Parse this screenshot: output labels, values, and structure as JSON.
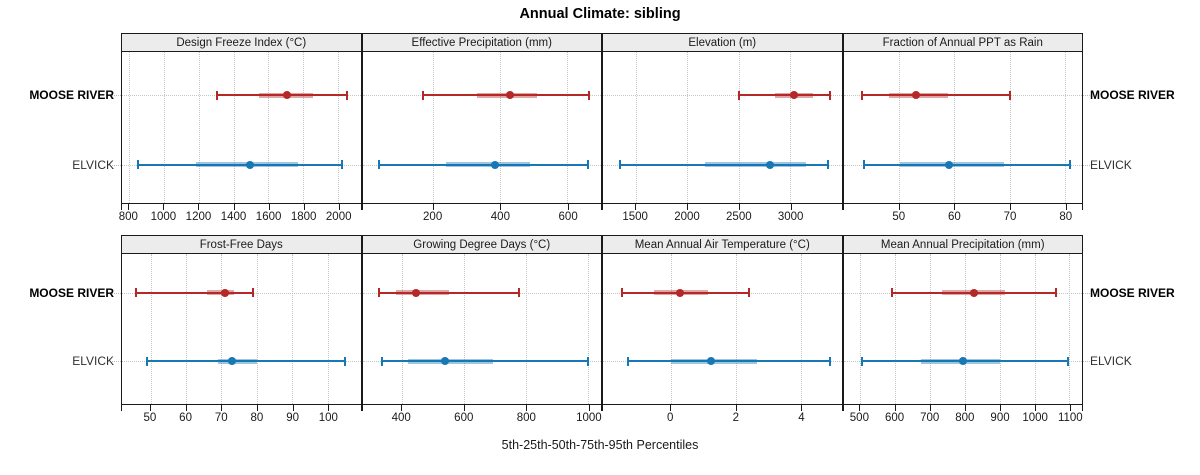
{
  "title": "Annual Climate: sibling",
  "xlabel": "5th-25th-50th-75th-95th Percentiles",
  "colors": {
    "moose_river": "#b42828",
    "elvick": "#1778b5",
    "grid": "#c6c6c6",
    "strip_bg": "#ececec",
    "panel_border": "#1a1a1a"
  },
  "chart_data": {
    "type": "interval-dotplot",
    "title": "Annual Climate: sibling",
    "xlabel": "5th-25th-50th-75th-95th Percentiles",
    "groups": [
      "MOOSE RIVER",
      "ELVICK"
    ],
    "percentile_levels": [
      5,
      25,
      50,
      75,
      95
    ],
    "legend_position": "none",
    "grid": "dotted",
    "layout": "2 rows x 4 columns, group labels on left and right of each row",
    "panels": [
      {
        "title": "Design Freeze Index (°C)",
        "row": 0,
        "xlim": [
          758,
          2130
        ],
        "ticks": [
          800,
          1000,
          1200,
          1400,
          1600,
          1800,
          2000
        ],
        "series": [
          {
            "name": "MOOSE RIVER",
            "percentiles": [
              1305,
              1545,
              1705,
              1855,
              2050
            ]
          },
          {
            "name": "ELVICK",
            "percentiles": [
              850,
              1185,
              1495,
              1770,
              2025
            ]
          }
        ]
      },
      {
        "title": "Effective Precipitation (mm)",
        "row": 0,
        "xlim": [
          -10,
          700
        ],
        "ticks": [
          200,
          400,
          600
        ],
        "series": [
          {
            "name": "MOOSE RIVER",
            "percentiles": [
              170,
              330,
              430,
              510,
              665
            ]
          },
          {
            "name": "ELVICK",
            "percentiles": [
              40,
              240,
              385,
              490,
              660
            ]
          }
        ]
      },
      {
        "title": "Elevation (m)",
        "row": 0,
        "xlim": [
          1180,
          3500
        ],
        "ticks": [
          1500,
          2000,
          2500,
          3000
        ],
        "series": [
          {
            "name": "MOOSE RIVER",
            "percentiles": [
              2500,
              2855,
              3040,
              3225,
              3390
            ]
          },
          {
            "name": "ELVICK",
            "percentiles": [
              1350,
              2170,
              2800,
              3150,
              3365
            ]
          }
        ]
      },
      {
        "title": "Fraction of Annual PPT as Rain",
        "row": 0,
        "xlim": [
          39.9,
          83.1
        ],
        "ticks": [
          50,
          60,
          70,
          80
        ],
        "series": [
          {
            "name": "MOOSE RIVER",
            "percentiles": [
              43.2,
              48.1,
              53.1,
              58.8,
              70.1
            ]
          },
          {
            "name": "ELVICK",
            "percentiles": [
              43.6,
              50.1,
              59,
              69,
              81
            ]
          }
        ]
      },
      {
        "title": "Frost-Free Days",
        "row": 1,
        "xlim": [
          41.9,
          109.3
        ],
        "ticks": [
          50,
          60,
          70,
          80,
          90,
          100
        ],
        "series": [
          {
            "name": "MOOSE RIVER",
            "percentiles": [
              45.8,
              66,
              71,
              73.5,
              79
            ]
          },
          {
            "name": "ELVICK",
            "percentiles": [
              49,
              69,
              73,
              80,
              105
            ]
          }
        ]
      },
      {
        "title": "Growing Degree Days (°C)",
        "row": 1,
        "xlim": [
          273,
          1042
        ],
        "ticks": [
          400,
          600,
          800,
          1000
        ],
        "series": [
          {
            "name": "MOOSE RIVER",
            "percentiles": [
              325,
              382,
              446,
              552,
              776
            ]
          },
          {
            "name": "ELVICK",
            "percentiles": [
              337,
              419,
              540,
              693,
              1000
            ]
          }
        ]
      },
      {
        "title": "Mean Annual Air Temperature (°C)",
        "row": 1,
        "xlim": [
          -2.08,
          5.25
        ],
        "ticks": [
          0,
          2,
          4
        ],
        "series": [
          {
            "name": "MOOSE RIVER",
            "percentiles": [
              -1.5,
              -0.5,
              0.3,
              1.15,
              2.4
            ]
          },
          {
            "name": "ELVICK",
            "percentiles": [
              -1.3,
              0,
              1.25,
              2.65,
              4.9
            ]
          }
        ]
      },
      {
        "title": "Mean Annual Precipitation (mm)",
        "row": 1,
        "xlim": [
          452,
          1136
        ],
        "ticks": [
          500,
          600,
          700,
          800,
          900,
          1000,
          1100
        ],
        "series": [
          {
            "name": "MOOSE RIVER",
            "percentiles": [
              590,
              735,
              825,
              915,
              1060
            ]
          },
          {
            "name": "ELVICK",
            "percentiles": [
              505,
              673,
              795,
              900,
              1095
            ]
          }
        ]
      }
    ]
  }
}
